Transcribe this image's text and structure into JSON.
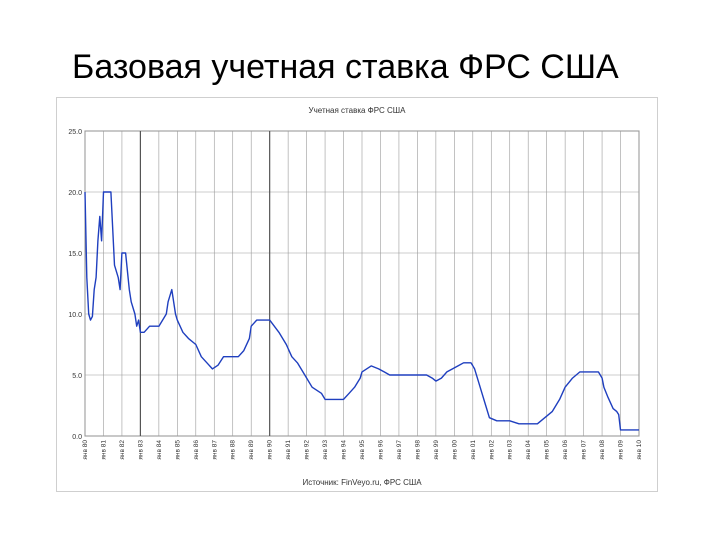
{
  "slide": {
    "title": "Базовая учетная ставка ФРС США"
  },
  "chart_data": {
    "type": "line",
    "title": "Учетная ставка ФРС США",
    "source": "Источник: FinVeyo.ru, ФРС США",
    "xlabel": "",
    "ylabel": "",
    "ylim": [
      0,
      25
    ],
    "yticks": [
      "0.0",
      "5.0",
      "10.0",
      "15.0",
      "20.0",
      "25.0"
    ],
    "xticks": [
      "янв 80",
      "янв 81",
      "янв 82",
      "янв 83",
      "янв 84",
      "янв 85",
      "янв 86",
      "янв 87",
      "янв 88",
      "янв 89",
      "янв 90",
      "янв 91",
      "янв 92",
      "янв 93",
      "янв 94",
      "янв 95",
      "янв 96",
      "янв 97",
      "янв 98",
      "янв 99",
      "янв 00",
      "янв 01",
      "янв 02",
      "янв 03",
      "янв 04",
      "янв 05",
      "янв 06",
      "янв 07",
      "янв 08",
      "янв 09",
      "янв 10"
    ],
    "xlim": [
      1980,
      2010
    ],
    "grid": true,
    "line_color": "#1f3fbf",
    "series": [
      {
        "name": "",
        "x": [
          1980.0,
          1980.1,
          1980.2,
          1980.3,
          1980.4,
          1980.5,
          1980.6,
          1980.7,
          1980.8,
          1980.9,
          1981.0,
          1981.2,
          1981.4,
          1981.6,
          1981.8,
          1981.9,
          1982.0,
          1982.2,
          1982.4,
          1982.5,
          1982.7,
          1982.8,
          1982.9,
          1983.0,
          1983.2,
          1983.5,
          1983.8,
          1984.0,
          1984.2,
          1984.4,
          1984.5,
          1984.7,
          1984.9,
          1985.0,
          1985.3,
          1985.6,
          1986.0,
          1986.3,
          1986.6,
          1986.9,
          1987.2,
          1987.5,
          1987.8,
          1988.0,
          1988.3,
          1988.6,
          1988.9,
          1989.0,
          1989.3,
          1989.6,
          1990.0,
          1990.5,
          1990.9,
          1991.2,
          1991.5,
          1991.9,
          1992.3,
          1992.8,
          1993.0,
          1993.5,
          1994.0,
          1994.3,
          1994.6,
          1994.9,
          1995.0,
          1995.5,
          1995.9,
          1996.2,
          1996.5,
          1997.0,
          1997.5,
          1998.0,
          1998.5,
          1998.8,
          1999.0,
          1999.3,
          1999.6,
          1999.9,
          2000.2,
          2000.5,
          2000.9,
          2001.1,
          2001.3,
          2001.5,
          2001.7,
          2001.9,
          2002.3,
          2002.9,
          2003.0,
          2003.5,
          2004.0,
          2004.5,
          2004.9,
          2005.3,
          2005.7,
          2006.0,
          2006.4,
          2006.8,
          2007.3,
          2007.6,
          2007.8,
          2008.0,
          2008.1,
          2008.3,
          2008.6,
          2008.8,
          2008.9,
          2009.0,
          2009.5,
          2010.0
        ],
        "y": [
          20,
          13,
          10,
          9.5,
          9.8,
          12,
          13,
          16,
          18,
          16,
          20,
          20,
          20,
          14,
          13,
          12,
          15,
          15,
          12,
          11,
          10,
          9,
          9.5,
          8.5,
          8.5,
          9,
          9,
          9,
          9.5,
          10,
          11,
          12,
          10,
          9.5,
          8.5,
          8,
          7.5,
          6.5,
          6,
          5.5,
          5.8,
          6.5,
          6.5,
          6.5,
          6.5,
          7,
          8,
          9,
          9.5,
          9.5,
          9.5,
          8.5,
          7.5,
          6.5,
          6,
          5,
          4,
          3.5,
          3,
          3,
          3,
          3.5,
          4,
          4.75,
          5.25,
          5.75,
          5.5,
          5.25,
          5,
          5,
          5,
          5,
          5,
          4.75,
          4.5,
          4.75,
          5.25,
          5.5,
          5.75,
          6,
          6,
          5.5,
          4.5,
          3.5,
          2.5,
          1.5,
          1.25,
          1.25,
          1.25,
          1,
          1,
          1,
          1.5,
          2,
          3,
          4,
          4.75,
          5.25,
          5.25,
          5.25,
          5.25,
          4.75,
          4,
          3.25,
          2.25,
          2,
          1.75,
          0.5,
          0.5,
          0.5
        ]
      }
    ]
  }
}
